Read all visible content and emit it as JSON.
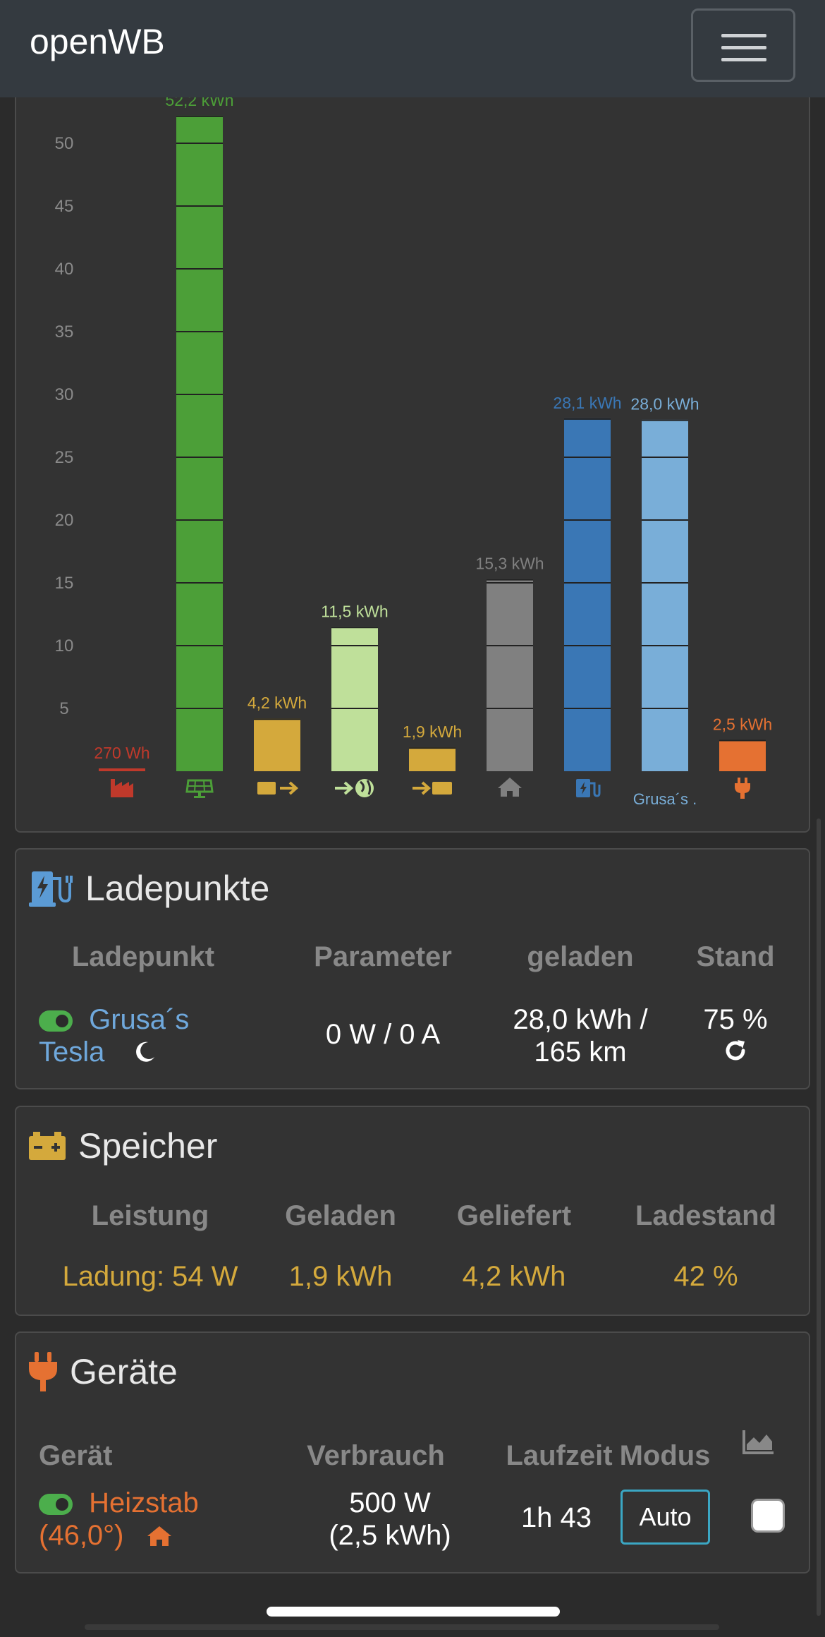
{
  "navbar": {
    "brand": "openWB"
  },
  "chart_data": {
    "type": "bar",
    "ylim": [
      0,
      55
    ],
    "yticks": [
      "5",
      "10",
      "15",
      "20",
      "25",
      "30",
      "35",
      "40",
      "45",
      "50"
    ],
    "bars": [
      {
        "value": 0.27,
        "label": "270 Wh",
        "color": "#c0392b",
        "icon": "factory-icon"
      },
      {
        "value": 52.2,
        "label": "52,2 kWh",
        "color": "#4c9f38",
        "icon": "solar-panel-icon"
      },
      {
        "value": 4.2,
        "label": "4,2 kWh",
        "color": "#d4a93c",
        "icon": "battery-discharge-icon"
      },
      {
        "value": 11.5,
        "label": "11,5 kWh",
        "color": "#bfe09a",
        "icon": "grid-export-icon"
      },
      {
        "value": 1.9,
        "label": "1,9 kWh",
        "color": "#d4a93c",
        "icon": "battery-charge-icon"
      },
      {
        "value": 15.3,
        "label": "15,3 kWh",
        "color": "#808080",
        "icon": "house-icon"
      },
      {
        "value": 28.1,
        "label": "28,1 kWh",
        "color": "#3a77b5",
        "icon": "charging-station-icon"
      },
      {
        "value": 28.0,
        "label": "28,0 kWh",
        "color": "#79aed8",
        "icon": "",
        "category": "Grusa´s ."
      },
      {
        "value": 2.5,
        "label": "2,5 kWh",
        "color": "#e57132",
        "icon": "plug-icon"
      }
    ]
  },
  "ladepunkte": {
    "title": "Ladepunkte",
    "headers": [
      "Ladepunkt",
      "Parameter",
      "geladen",
      "Stand"
    ],
    "row": {
      "name_line1": "Grusa´s",
      "name_line2": "Tesla",
      "parameter": "0 W / 0 A",
      "geladen_line1": "28,0 kWh /",
      "geladen_line2": "165 km",
      "stand": "75 %"
    }
  },
  "speicher": {
    "title": "Speicher",
    "headers": [
      "Leistung",
      "Geladen",
      "Geliefert",
      "Ladestand"
    ],
    "row": {
      "leistung": "Ladung: 54 W",
      "geladen": "1,9 kWh",
      "geliefert": "4,2 kWh",
      "ladestand": "42 %"
    }
  },
  "geraete": {
    "title": "Geräte",
    "headers": [
      "Gerät",
      "Verbrauch",
      "Laufzeit",
      "Modus"
    ],
    "row": {
      "name_line1": "Heizstab",
      "name_line2": "(46,0°)",
      "verbrauch_line1": "500 W",
      "verbrauch_line2": "(2,5 kWh)",
      "laufzeit": "1h 43",
      "modus": "Auto"
    }
  },
  "colors": {
    "blue": "#6fa8dc",
    "yellow": "#d4a93c",
    "orange": "#e57132",
    "green": "#4cae4c"
  }
}
